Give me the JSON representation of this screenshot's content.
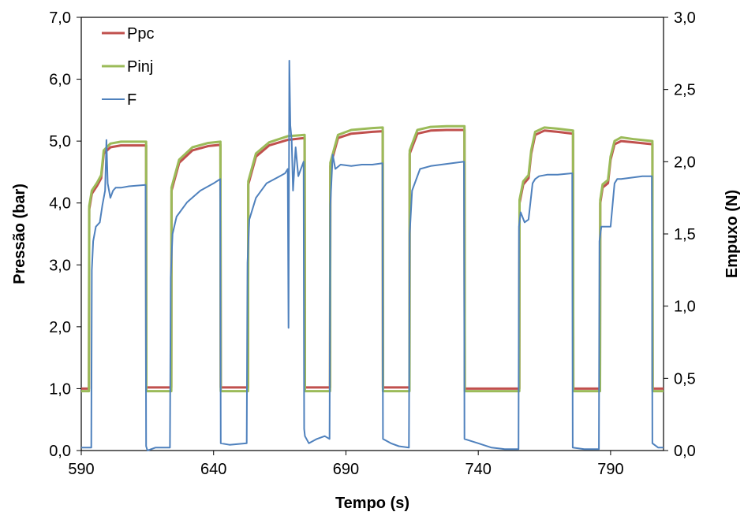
{
  "chart_data": {
    "type": "line",
    "xlabel": "Tempo (s)",
    "ylabel": "Pressão (bar)",
    "y2label": "Empuxo (N)",
    "xlim": [
      590,
      810
    ],
    "ylim": [
      0,
      7
    ],
    "y2lim": [
      0,
      3
    ],
    "xticks": [
      "590",
      "640",
      "690",
      "740",
      "790"
    ],
    "yticks": [
      "0,0",
      "1,0",
      "2,0",
      "3,0",
      "4,0",
      "5,0",
      "6,0",
      "7,0"
    ],
    "y2ticks": [
      "0,0",
      "0,5",
      "1,0",
      "1,5",
      "2,0",
      "2,5",
      "3,0"
    ],
    "grid": false,
    "legend_position": "top-left",
    "series": [
      {
        "name": "Ppc",
        "axis": "left",
        "color": "#C0504D",
        "x": [
          590,
          592.9,
          593,
          594,
          596,
          597.5,
          598.5,
          601,
          605,
          614.5,
          614.6,
          624,
          624.1,
          627,
          632,
          638,
          642.6,
          642.7,
          653,
          653.1,
          656,
          661,
          668,
          674.4,
          674.5,
          684,
          684.1,
          687,
          692,
          700,
          703.9,
          704,
          714,
          714.1,
          717,
          722,
          728,
          734.8,
          734.9,
          755.5,
          755.6,
          757,
          759,
          760,
          761.5,
          765,
          770,
          775.8,
          775.9,
          786,
          786.1,
          787,
          789,
          790,
          791.5,
          794,
          799,
          805.8,
          805.9,
          810
        ],
        "values": [
          1.0,
          1.0,
          3.9,
          4.15,
          4.28,
          4.4,
          4.8,
          4.9,
          4.93,
          4.93,
          1.02,
          1.02,
          4.2,
          4.65,
          4.85,
          4.92,
          4.94,
          1.02,
          1.02,
          4.3,
          4.75,
          4.93,
          5.02,
          5.05,
          1.02,
          1.02,
          4.6,
          5.05,
          5.12,
          5.15,
          5.16,
          1.02,
          1.02,
          4.8,
          5.12,
          5.17,
          5.18,
          5.18,
          1.0,
          1.0,
          4.0,
          4.3,
          4.4,
          4.8,
          5.1,
          5.17,
          5.15,
          5.12,
          1.0,
          1.0,
          4.0,
          4.25,
          4.32,
          4.7,
          4.95,
          5.0,
          4.98,
          4.95,
          1.0,
          1.0
        ]
      },
      {
        "name": "Pinj",
        "axis": "left",
        "color": "#9BBB59",
        "x": [
          590,
          592.9,
          593,
          594,
          596,
          597.5,
          598.5,
          601,
          605,
          614.5,
          614.6,
          624,
          624.1,
          627,
          632,
          638,
          642.6,
          642.7,
          653,
          653.1,
          656,
          661,
          668,
          674.4,
          674.5,
          684,
          684.1,
          687,
          692,
          700,
          703.9,
          704,
          714,
          714.1,
          717,
          722,
          728,
          734.8,
          734.9,
          755.5,
          755.6,
          757,
          759,
          760,
          761.5,
          765,
          770,
          775.8,
          775.9,
          786,
          786.1,
          787,
          789,
          790,
          791.5,
          794,
          799,
          805.8,
          805.9,
          810
        ],
        "values": [
          0.96,
          0.96,
          3.95,
          4.2,
          4.33,
          4.45,
          4.85,
          4.96,
          4.99,
          4.99,
          0.96,
          0.96,
          4.25,
          4.7,
          4.9,
          4.97,
          4.99,
          0.96,
          0.96,
          4.35,
          4.8,
          4.98,
          5.08,
          5.1,
          0.96,
          0.96,
          4.65,
          5.1,
          5.18,
          5.21,
          5.22,
          0.96,
          0.96,
          4.85,
          5.18,
          5.23,
          5.24,
          5.24,
          0.96,
          0.96,
          4.05,
          4.35,
          4.45,
          4.85,
          5.15,
          5.22,
          5.2,
          5.17,
          0.96,
          0.96,
          4.05,
          4.3,
          4.37,
          4.75,
          5.0,
          5.06,
          5.03,
          5.0,
          0.96,
          0.96
        ]
      },
      {
        "name": "F",
        "axis": "right",
        "color": "#4F81BD",
        "x": [
          590,
          593.8,
          594,
          594.5,
          595.5,
          597,
          598,
          599,
          599.5,
          600,
          601,
          602,
          603,
          605,
          608,
          614.3,
          614.5,
          615,
          618,
          623.5,
          623.8,
          624.5,
          626,
          630,
          635,
          640,
          642.5,
          642.7,
          646,
          652.5,
          652.8,
          653.5,
          656,
          660,
          665,
          667,
          668,
          668.3,
          668.6,
          669,
          669.5,
          670,
          671,
          672,
          673,
          674,
          674.2,
          674.5,
          676,
          679,
          682,
          683.8,
          684.1,
          685,
          686,
          688,
          692,
          696,
          700,
          703.8,
          704,
          707,
          710,
          713.8,
          714.1,
          715,
          718,
          722,
          726,
          730,
          734.6,
          734.8,
          740,
          745,
          750,
          755.2,
          755.4,
          756,
          757.5,
          759,
          760.5,
          761.5,
          763,
          766,
          770,
          775.5,
          775.7,
          780,
          785.6,
          785.8,
          786.5,
          788,
          790,
          791.5,
          792.5,
          794,
          798,
          802,
          805.6,
          805.8,
          808,
          810
        ],
        "values": [
          0.02,
          0.02,
          1.25,
          1.45,
          1.55,
          1.58,
          1.7,
          1.8,
          2.15,
          1.85,
          1.75,
          1.8,
          1.82,
          1.82,
          1.83,
          1.84,
          0.03,
          0.0,
          0.02,
          0.02,
          1.2,
          1.5,
          1.62,
          1.72,
          1.8,
          1.85,
          1.88,
          0.05,
          0.04,
          0.05,
          1.3,
          1.6,
          1.75,
          1.85,
          1.9,
          1.92,
          1.95,
          0.85,
          2.7,
          2.25,
          2.15,
          1.8,
          2.1,
          1.9,
          1.95,
          2.0,
          0.15,
          0.1,
          0.05,
          0.08,
          0.1,
          0.08,
          1.7,
          2.05,
          1.95,
          1.98,
          1.97,
          1.98,
          1.98,
          1.99,
          0.08,
          0.05,
          0.03,
          0.02,
          1.5,
          1.8,
          1.95,
          1.97,
          1.98,
          1.99,
          2.0,
          0.08,
          0.05,
          0.02,
          0.01,
          0.01,
          1.55,
          1.65,
          1.58,
          1.6,
          1.85,
          1.88,
          1.9,
          1.91,
          1.91,
          1.92,
          0.02,
          0.01,
          0.01,
          1.45,
          1.55,
          1.55,
          1.55,
          1.85,
          1.88,
          1.88,
          1.89,
          1.9,
          1.9,
          0.05,
          0.02,
          0.02
        ]
      }
    ]
  }
}
